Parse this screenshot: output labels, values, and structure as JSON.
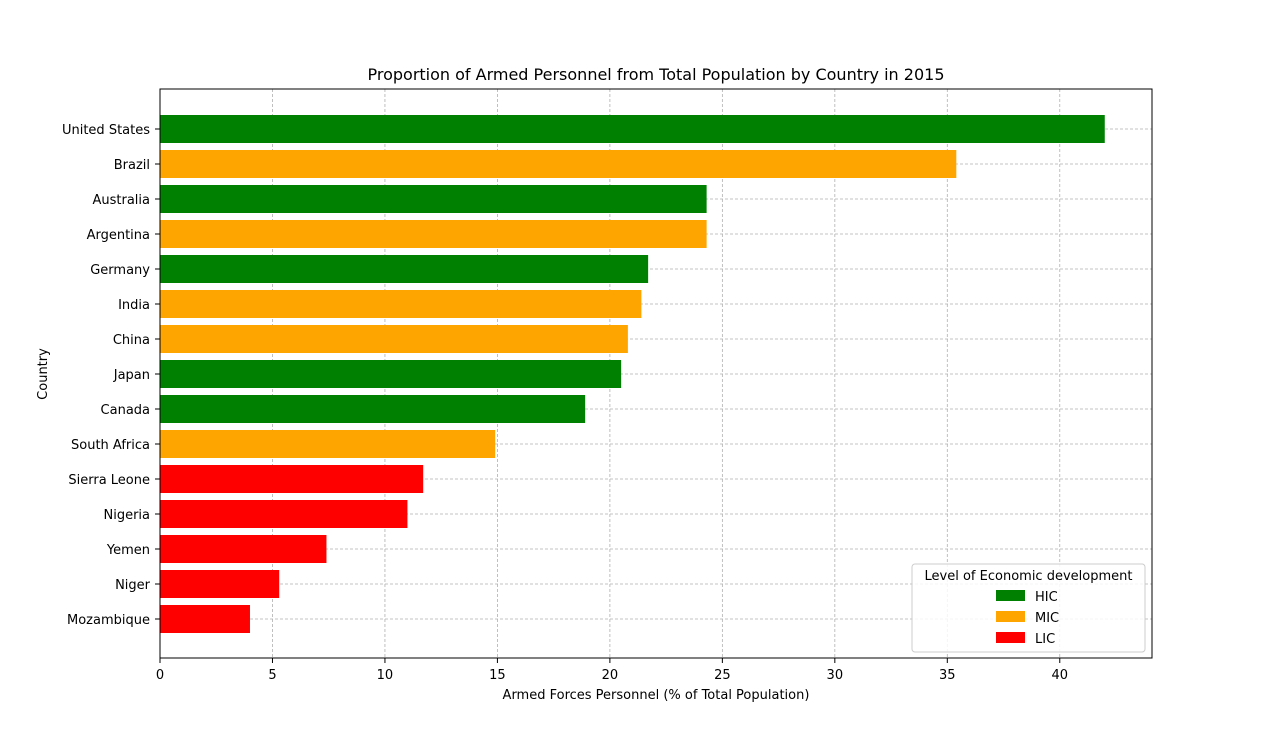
{
  "chart_data": {
    "type": "bar",
    "orientation": "horizontal",
    "title": "Proportion of Armed Personnel from Total Population by Country in 2015",
    "xlabel": "Armed Forces Personnel (% of Total Population)",
    "ylabel": "Country",
    "xlim": [
      0,
      44.1
    ],
    "xticks": [
      0,
      5,
      10,
      15,
      20,
      25,
      30,
      35,
      40
    ],
    "grid": true,
    "legend": {
      "title": "Level of Economic development",
      "placement": "lower-right",
      "entries": [
        {
          "label": "HIC",
          "color": "#008000"
        },
        {
          "label": "MIC",
          "color": "#FFA500"
        },
        {
          "label": "LIC",
          "color": "#FF0000"
        }
      ]
    },
    "categories": [
      "United States",
      "Brazil",
      "Australia",
      "Argentina",
      "Germany",
      "India",
      "China",
      "Japan",
      "Canada",
      "South Africa",
      "Sierra Leone",
      "Nigeria",
      "Yemen",
      "Niger",
      "Mozambique"
    ],
    "values": [
      42.0,
      35.4,
      24.3,
      24.3,
      21.7,
      21.4,
      20.8,
      20.5,
      18.9,
      14.9,
      11.7,
      11.0,
      7.4,
      5.3,
      4.0
    ],
    "groups": [
      "HIC",
      "MIC",
      "HIC",
      "MIC",
      "HIC",
      "MIC",
      "MIC",
      "HIC",
      "HIC",
      "MIC",
      "LIC",
      "LIC",
      "LIC",
      "LIC",
      "LIC"
    ]
  }
}
